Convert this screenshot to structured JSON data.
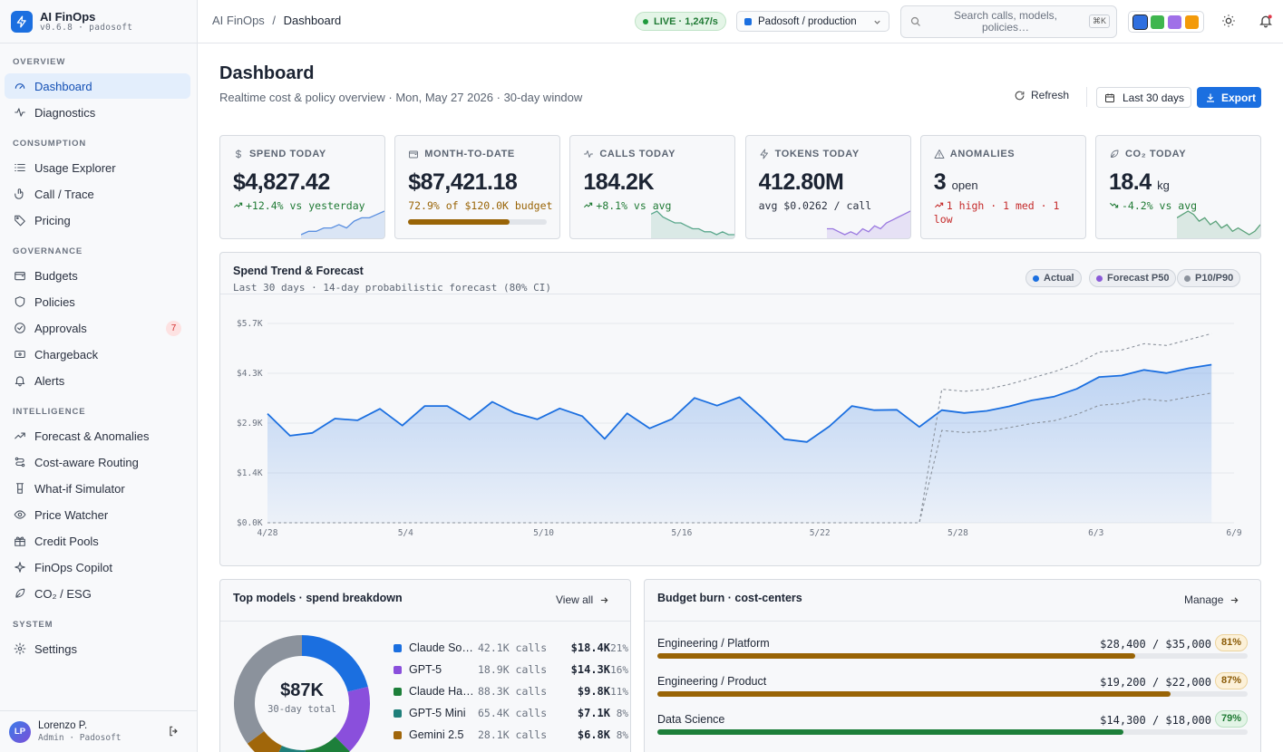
{
  "app": {
    "name": "AI FinOps",
    "version": "v0.6.8 · padosoft"
  },
  "sidebar": {
    "sections": [
      {
        "title": "OVERVIEW",
        "items": [
          {
            "label": "Dashboard",
            "icon": "gauge-icon",
            "active": true
          },
          {
            "label": "Diagnostics",
            "icon": "activity-icon"
          }
        ]
      },
      {
        "title": "CONSUMPTION",
        "items": [
          {
            "label": "Usage Explorer",
            "icon": "list-icon"
          },
          {
            "label": "Call / Trace",
            "icon": "pointer-icon"
          },
          {
            "label": "Pricing",
            "icon": "tag-icon"
          }
        ]
      },
      {
        "title": "GOVERNANCE",
        "items": [
          {
            "label": "Budgets",
            "icon": "wallet-icon"
          },
          {
            "label": "Policies",
            "icon": "shield-icon"
          },
          {
            "label": "Approvals",
            "icon": "check-circle-icon",
            "badge": "7"
          },
          {
            "label": "Chargeback",
            "icon": "receipt-icon"
          },
          {
            "label": "Alerts",
            "icon": "bell-icon"
          }
        ]
      },
      {
        "title": "INTELLIGENCE",
        "items": [
          {
            "label": "Forecast & Anomalies",
            "icon": "trending-icon"
          },
          {
            "label": "Cost-aware Routing",
            "icon": "route-icon"
          },
          {
            "label": "What-if Simulator",
            "icon": "flask-icon"
          },
          {
            "label": "Price Watcher",
            "icon": "eye-icon"
          },
          {
            "label": "Credit Pools",
            "icon": "gift-icon"
          },
          {
            "label": "FinOps Copilot",
            "icon": "sparkle-icon"
          },
          {
            "label": "CO₂ / ESG",
            "icon": "leaf-icon"
          }
        ]
      },
      {
        "title": "SYSTEM",
        "items": [
          {
            "label": "Settings",
            "icon": "gear-icon"
          }
        ]
      }
    ],
    "user": {
      "initials": "LP",
      "name": "Lorenzo P.",
      "role": "Admin · Padosoft"
    }
  },
  "topbar": {
    "crumb_root": "AI FinOps",
    "crumb_sep": "/",
    "crumb_page": "Dashboard",
    "live": "LIVE · 1,247/s",
    "env": "Padosoft / production",
    "search_placeholder": "Search calls, models, policies…",
    "search_kbd": "⌘K",
    "swatches": [
      "#2f6fdf",
      "#3fb64f",
      "#a070e8",
      "#f39a0a"
    ]
  },
  "header": {
    "title": "Dashboard",
    "subtitle": "Realtime cost & policy overview · Mon, May 27 2026 · 30-day window",
    "refresh": "Refresh",
    "range": "Last 30 days",
    "export": "Export"
  },
  "kpis": [
    {
      "label": "SPEND TODAY",
      "icon": "dollar-icon",
      "value": "$4,827.42",
      "sub": "+12.4% vs yesterday",
      "sub_color": "#1f7a34",
      "trend": "up",
      "spark_color": "#5a8fe0",
      "spark": [
        3,
        4,
        4,
        5,
        5,
        6,
        5,
        7,
        8,
        8,
        9,
        10
      ]
    },
    {
      "label": "MONTH-TO-DATE",
      "icon": "wallet-icon",
      "value": "$87,421.18",
      "sub": "72.9% of $120.0K budget",
      "sub_color": "#996406",
      "progress": 0.729
    },
    {
      "label": "CALLS TODAY",
      "icon": "activity-icon",
      "value": "184.2K",
      "sub": "+8.1% vs avg",
      "sub_color": "#1f7a34",
      "trend": "up",
      "spark_color": "#5aa78c",
      "spark": [
        8,
        9,
        7,
        6,
        5,
        5,
        4,
        3,
        3,
        2,
        2,
        1,
        2,
        1,
        1
      ]
    },
    {
      "label": "TOKENS TODAY",
      "icon": "bolt-icon",
      "value": "412.80M",
      "sub": "avg $0.0262 / call",
      "sub_color": "#2a3140",
      "spark_color": "#9a78e0",
      "spark": [
        3,
        3,
        2,
        1,
        2,
        1,
        3,
        2,
        4,
        3,
        5,
        6,
        7,
        8,
        9
      ]
    },
    {
      "label": "ANOMALIES",
      "icon": "alert-icon",
      "value": "3",
      "value_suffix": "open",
      "sub": "1 high · 1 med · 1 low",
      "sub_color": "#c52b2b",
      "trend": "up-red"
    },
    {
      "label": "CO₂ TODAY",
      "icon": "leaf-icon",
      "value": "18.4",
      "value_suffix": "kg",
      "sub": "-4.2% vs avg",
      "sub_color": "#1f7a34",
      "trend": "down",
      "spark_color": "#5aa27a",
      "spark": [
        6,
        7,
        8,
        7,
        5,
        6,
        4,
        5,
        3,
        4,
        2,
        3,
        2,
        1,
        2,
        4
      ]
    }
  ],
  "trend": {
    "title": "Spend Trend & Forecast",
    "subtitle": "Last 30 days · 14-day probabilistic forecast (80% CI)",
    "legend": [
      {
        "label": "Actual",
        "color": "#1b6fe0"
      },
      {
        "label": "Forecast P50",
        "color": "#8a5ad8"
      },
      {
        "label": "P10/P90",
        "color": "#8b929c"
      }
    ]
  },
  "chart_data": {
    "type": "line",
    "title": "Spend Trend & Forecast",
    "x_ticks": [
      "4/28",
      "5/4",
      "5/10",
      "5/16",
      "5/22",
      "5/28",
      "6/3",
      "6/9"
    ],
    "y_ticks": [
      "$0.0K",
      "$1.4K",
      "$2.9K",
      "$4.3K",
      "$5.7K"
    ],
    "ylim": [
      0,
      5700
    ],
    "grid": "horizontal",
    "actual": [
      3120,
      2490,
      2570,
      2980,
      2930,
      3260,
      2780,
      3340,
      3340,
      2950,
      3460,
      3140,
      2960,
      3270,
      3050,
      2400,
      3130,
      2700,
      2970,
      3570,
      3350,
      3590,
      3010,
      2390,
      2310,
      2760,
      3340,
      3220,
      3230,
      2740
    ],
    "forecast_p50": [
      3100,
      3220,
      3140,
      3200,
      3330,
      3500,
      3610,
      3830,
      4170,
      4210,
      4370,
      4280,
      4420,
      4520
    ],
    "forecast_p10": [
      2540,
      2640,
      2580,
      2620,
      2720,
      2840,
      2920,
      3100,
      3360,
      3410,
      3540,
      3480,
      3600,
      3710
    ],
    "forecast_p90": [
      3720,
      3820,
      3760,
      3820,
      3960,
      4140,
      4320,
      4550,
      4880,
      4940,
      5120,
      5070,
      5240,
      5410
    ]
  },
  "models": {
    "title": "Top models · spend breakdown",
    "link": "View all",
    "center_value": "$87K",
    "center_label": "30-day total",
    "rows": [
      {
        "name": "Claude Sonnet",
        "calls": "42.1K calls",
        "spend": "$18.4K",
        "pct": "21%",
        "color": "#1b6fe0"
      },
      {
        "name": "GPT-5",
        "calls": "18.9K calls",
        "spend": "$14.3K",
        "pct": "16%",
        "color": "#8a4fdc"
      },
      {
        "name": "Claude Haiku",
        "calls": "88.3K calls",
        "spend": "$9.8K",
        "pct": "11%",
        "color": "#1d7f3a"
      },
      {
        "name": "GPT-5 Mini",
        "calls": "65.4K calls",
        "spend": "$7.1K",
        "pct": "8%",
        "color": "#1f7f7a"
      },
      {
        "name": "Gemini 2.5",
        "calls": "28.1K calls",
        "spend": "$6.8K",
        "pct": "8%",
        "color": "#a0660a"
      }
    ],
    "donut": [
      {
        "color": "#1b6fe0",
        "value": 18.4
      },
      {
        "color": "#8a4fdc",
        "value": 14.3
      },
      {
        "color": "#1d7f3a",
        "value": 9.8
      },
      {
        "color": "#1f7f7a",
        "value": 7.1
      },
      {
        "color": "#a0660a",
        "value": 6.8
      },
      {
        "color": "#8b929c",
        "value": 30.6
      }
    ]
  },
  "budgets": {
    "title": "Budget burn · cost-centers",
    "link": "Manage",
    "rows": [
      {
        "name": "Engineering / Platform",
        "amount": "$28,400 / $35,000",
        "pct": "81%",
        "fill": 0.81,
        "bar": "#996406",
        "pill_bg": "#fcf1d9",
        "pill_fg": "#8a5a06",
        "pill_bd": "#ecd39c"
      },
      {
        "name": "Engineering / Product",
        "amount": "$19,200 / $22,000",
        "pct": "87%",
        "fill": 0.87,
        "bar": "#996406",
        "pill_bg": "#fcf1d9",
        "pill_fg": "#8a5a06",
        "pill_bd": "#ecd39c"
      },
      {
        "name": "Data Science",
        "amount": "$14,300 / $18,000",
        "pct": "79%",
        "fill": 0.79,
        "bar": "#1d7f3a",
        "pill_bg": "#e2f4e6",
        "pill_fg": "#1f7a34",
        "pill_bd": "#b7dfc0"
      }
    ]
  }
}
